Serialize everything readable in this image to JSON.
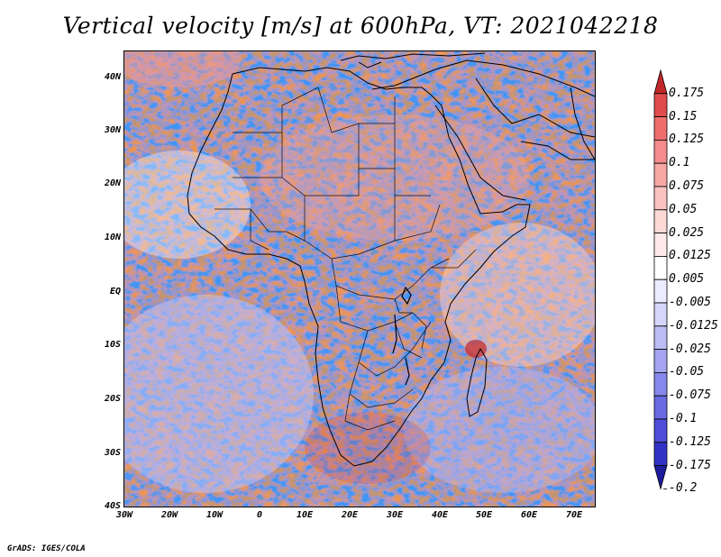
{
  "title": "Vertical velocity [m/s] at 600hPa, VT: 2021042218",
  "credit": "GrADS: IGES/COLA",
  "map": {
    "lon_range": [
      -30,
      75
    ],
    "lat_range": [
      -40,
      45
    ],
    "lat_ticks": [
      "40N",
      "30N",
      "20N",
      "10N",
      "EQ",
      "10S",
      "20S",
      "30S",
      "40S"
    ],
    "lon_ticks": [
      "30W",
      "20W",
      "10W",
      "0",
      "10E",
      "20E",
      "30E",
      "40E",
      "50E",
      "60E",
      "70E"
    ]
  },
  "colorbar": {
    "labels": [
      "0.175",
      "0.15",
      "0.125",
      "0.1",
      "0.075",
      "0.05",
      "0.025",
      "0.0125",
      "0.005",
      "-0.005",
      "-0.0125",
      "-0.025",
      "-0.05",
      "-0.075",
      "-0.1",
      "-0.125",
      "-0.175",
      "-0.2"
    ],
    "colors": [
      "#c0272a",
      "#e04c4c",
      "#ee6e6e",
      "#f58c8c",
      "#f9a8a6",
      "#fbc3c0",
      "#fdd9d6",
      "#feebe9",
      "#ffffff",
      "#ececff",
      "#d6d6fb",
      "#bdbdf6",
      "#a5a5f2",
      "#8888ec",
      "#6a6ae3",
      "#4d4dd8",
      "#3232c6",
      "#1c1c9c"
    ]
  }
}
